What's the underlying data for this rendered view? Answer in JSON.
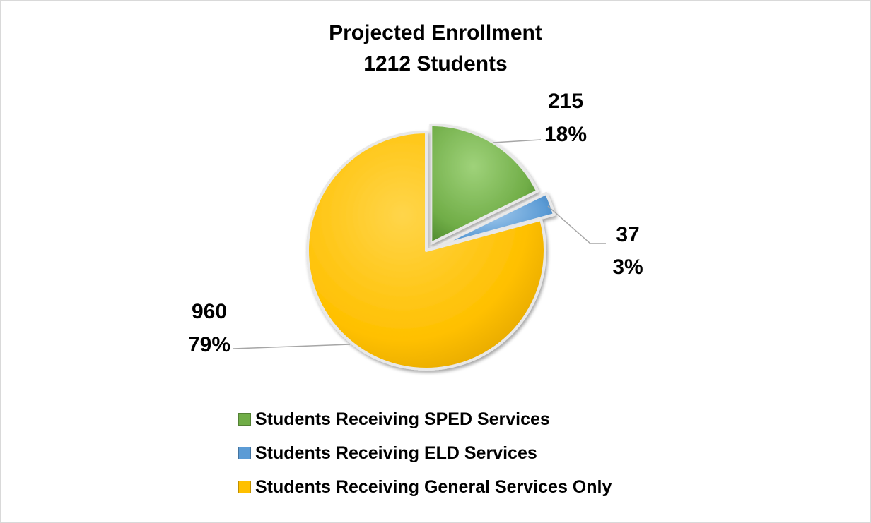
{
  "chart_data": {
    "type": "pie",
    "title": "Projected Enrollment",
    "subtitle": "1212 Students",
    "slices": [
      {
        "name": "Students Receiving SPED Services",
        "value": 215,
        "percent": "18%",
        "color": "#70ad47"
      },
      {
        "name": "Students Receiving ELD Services",
        "value": 37,
        "percent": "3%",
        "color": "#5b9bd5"
      },
      {
        "name": "Students Receiving General Services Only",
        "value": 960,
        "percent": "79%",
        "color": "#ffc000"
      }
    ],
    "legend_position": "bottom",
    "exploded": true
  }
}
